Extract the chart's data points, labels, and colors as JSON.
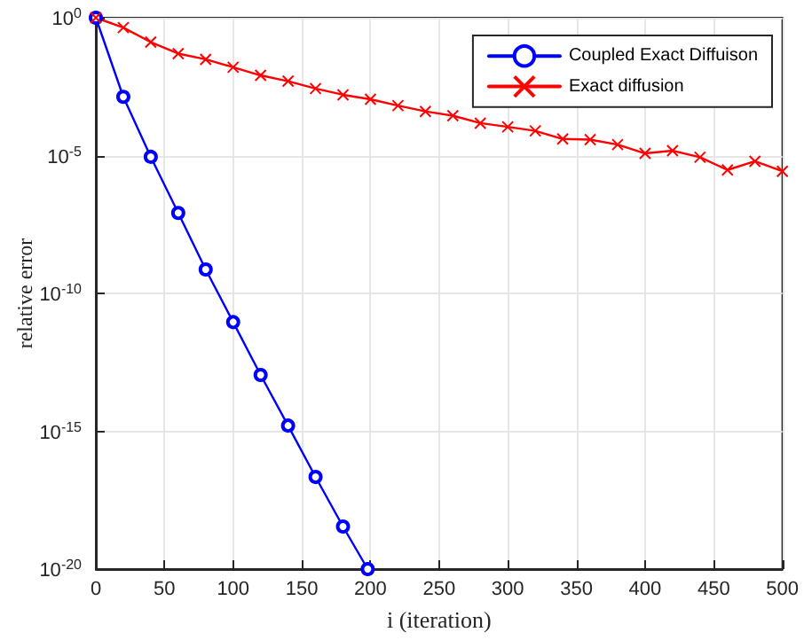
{
  "chart_data": {
    "type": "line",
    "xlabel": "i (iteration)",
    "ylabel": "relative error",
    "log": "y",
    "grid": true,
    "legend": "top right",
    "xlim": [
      0,
      500
    ],
    "xticks": [
      0,
      50,
      100,
      150,
      200,
      250,
      300,
      350,
      400,
      450,
      500
    ],
    "ylim": [
      1e-20,
      1
    ],
    "yticks": [
      {
        "value": 1e-20,
        "label": "10$^{-20}$"
      },
      {
        "value": 1e-15,
        "label": "10$^{-15}$"
      },
      {
        "value": 1e-10,
        "label": "10$^{-10}$"
      },
      {
        "value": 1e-05,
        "label": "10$^{-5}$"
      },
      {
        "value": 1,
        "label": "10$^{0}$"
      }
    ],
    "series": [
      {
        "name": "Coupled Exact Diffuison",
        "color": "#0000ff",
        "marker": "circle",
        "x": [
          0,
          20,
          40,
          60,
          80,
          100,
          120,
          140,
          160,
          180,
          198
        ],
        "values": [
          1,
          0.00135,
          9e-06,
          8.3e-08,
          7.4e-10,
          9.1e-12,
          1.1e-13,
          1.6e-15,
          2.2e-17,
          3.5e-19,
          1e-20
        ]
      },
      {
        "name": "Exact diffusion",
        "color": "#ff0000",
        "marker": "cross",
        "x": [
          0,
          20,
          40,
          60,
          80,
          100,
          120,
          140,
          160,
          180,
          200,
          220,
          240,
          260,
          280,
          300,
          320,
          340,
          360,
          380,
          400,
          420,
          440,
          460,
          480,
          500
        ],
        "values": [
          1,
          0.44,
          0.13,
          0.05,
          0.031,
          0.016,
          0.0081,
          0.005,
          0.0027,
          0.0016,
          0.0011,
          0.00065,
          0.0004,
          0.00028,
          0.00015,
          0.00011,
          7.9e-05,
          4e-05,
          3.8e-05,
          2.5e-05,
          1.2e-05,
          1.5e-05,
          8.7e-06,
          3e-06,
          6.2e-06,
          2.7e-06
        ]
      }
    ]
  }
}
